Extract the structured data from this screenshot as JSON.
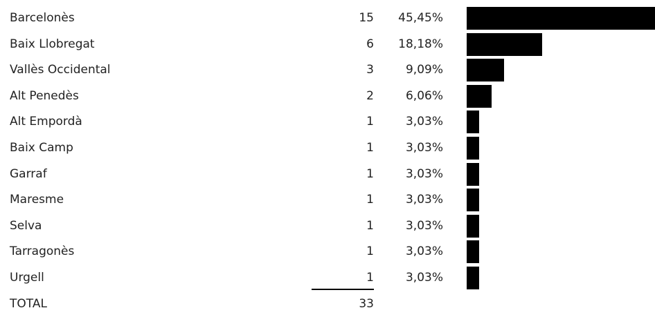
{
  "chart_data": {
    "type": "bar",
    "categories": [
      "Barcelonès",
      "Baix Llobregat",
      "Vallès Occidental",
      "Alt Penedès",
      "Alt Empordà",
      "Baix Camp",
      "Garraf",
      "Maresme",
      "Selva",
      "Tarragonès",
      "Urgell"
    ],
    "counts": [
      "15",
      "6",
      "3",
      "2",
      "1",
      "1",
      "1",
      "1",
      "1",
      "1",
      "1"
    ],
    "percentages": [
      "45,45%",
      "18,18%",
      "9,09%",
      "6,06%",
      "3,03%",
      "3,03%",
      "3,03%",
      "3,03%",
      "3,03%",
      "3,03%",
      "3,03%"
    ],
    "values": [
      45.45,
      18.18,
      9.09,
      6.06,
      3.03,
      3.03,
      3.03,
      3.03,
      3.03,
      3.03,
      3.03
    ],
    "xlim": [
      0,
      45.45
    ],
    "bar_color": "#000000",
    "orientation": "horizontal",
    "total_label": "TOTAL",
    "total_value": "33"
  }
}
